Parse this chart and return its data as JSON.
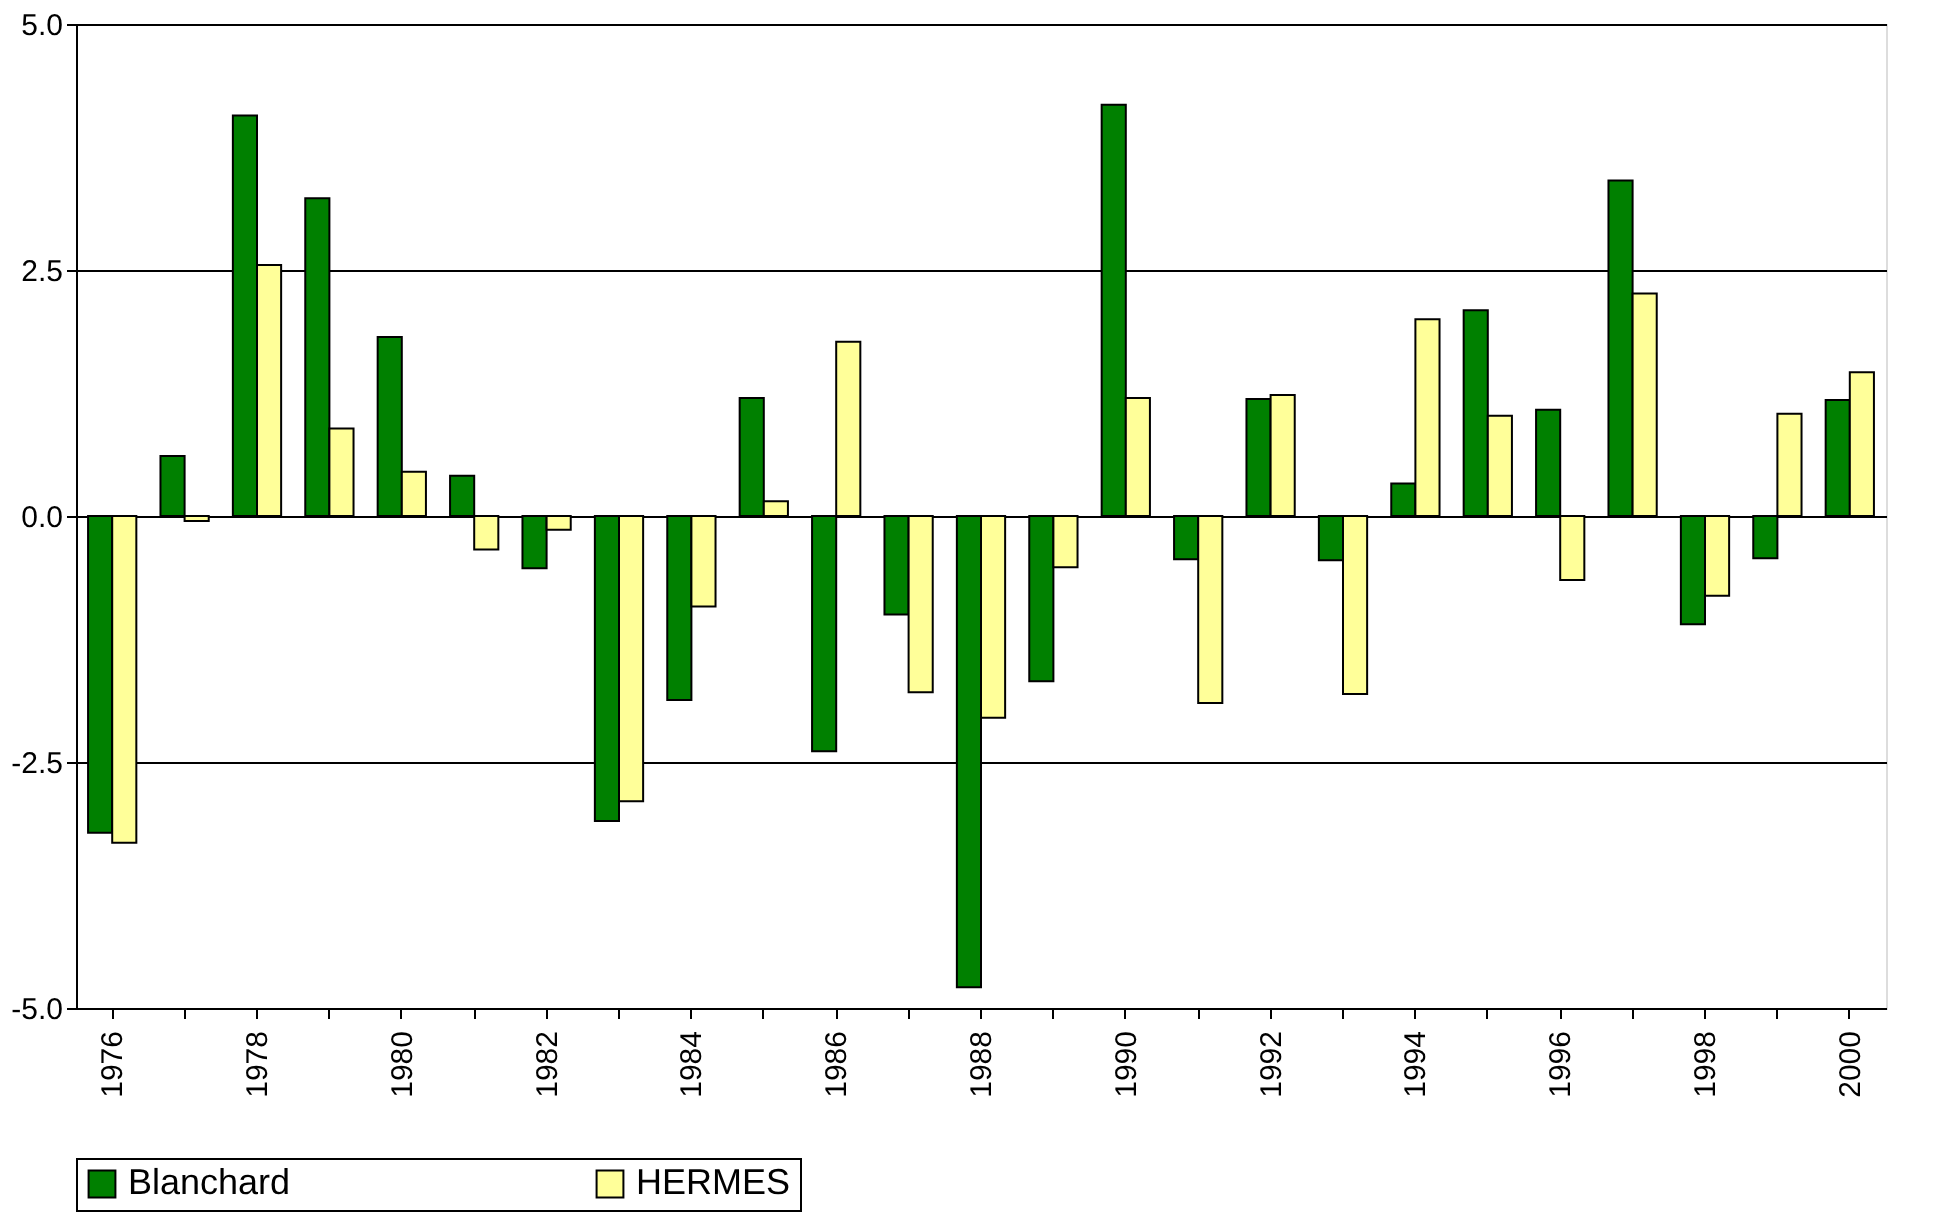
{
  "chart_data": {
    "type": "bar",
    "categories": [
      "1976",
      null,
      "1978",
      null,
      "1980",
      null,
      "1982",
      null,
      "1984",
      null,
      "1986",
      null,
      "1988",
      null,
      "1990",
      null,
      "1992",
      null,
      "1994",
      null,
      "1996",
      null,
      "1998",
      null,
      "2000"
    ],
    "series": [
      {
        "name": "Blanchard",
        "color": "#008000",
        "values": [
          -3.22,
          0.61,
          4.07,
          3.23,
          1.82,
          0.41,
          -0.53,
          -3.1,
          -1.87,
          1.2,
          -2.39,
          -1.0,
          -4.79,
          -1.68,
          4.18,
          -0.44,
          1.19,
          -0.45,
          0.33,
          2.09,
          1.08,
          3.41,
          -1.1,
          -0.43,
          1.18
        ]
      },
      {
        "name": "HERMES",
        "color": "#ffff99",
        "values": [
          -3.32,
          -0.05,
          2.55,
          0.89,
          0.45,
          -0.34,
          -0.14,
          -2.9,
          -0.92,
          0.15,
          1.77,
          -1.79,
          -2.05,
          -0.52,
          1.2,
          -1.9,
          1.23,
          -1.81,
          2.0,
          1.02,
          -0.65,
          2.26,
          -0.81,
          1.04,
          1.46
        ]
      }
    ],
    "ylim": [
      -5,
      5
    ],
    "yticks": [
      {
        "value": -5,
        "label": "-5.0"
      },
      {
        "value": -2.5,
        "label": "-2.5"
      },
      {
        "value": 0,
        "label": "0.0"
      },
      {
        "value": 2.5,
        "label": "2.5"
      },
      {
        "value": 5,
        "label": "5.0"
      }
    ],
    "grid": "y",
    "legend": "bottom"
  }
}
